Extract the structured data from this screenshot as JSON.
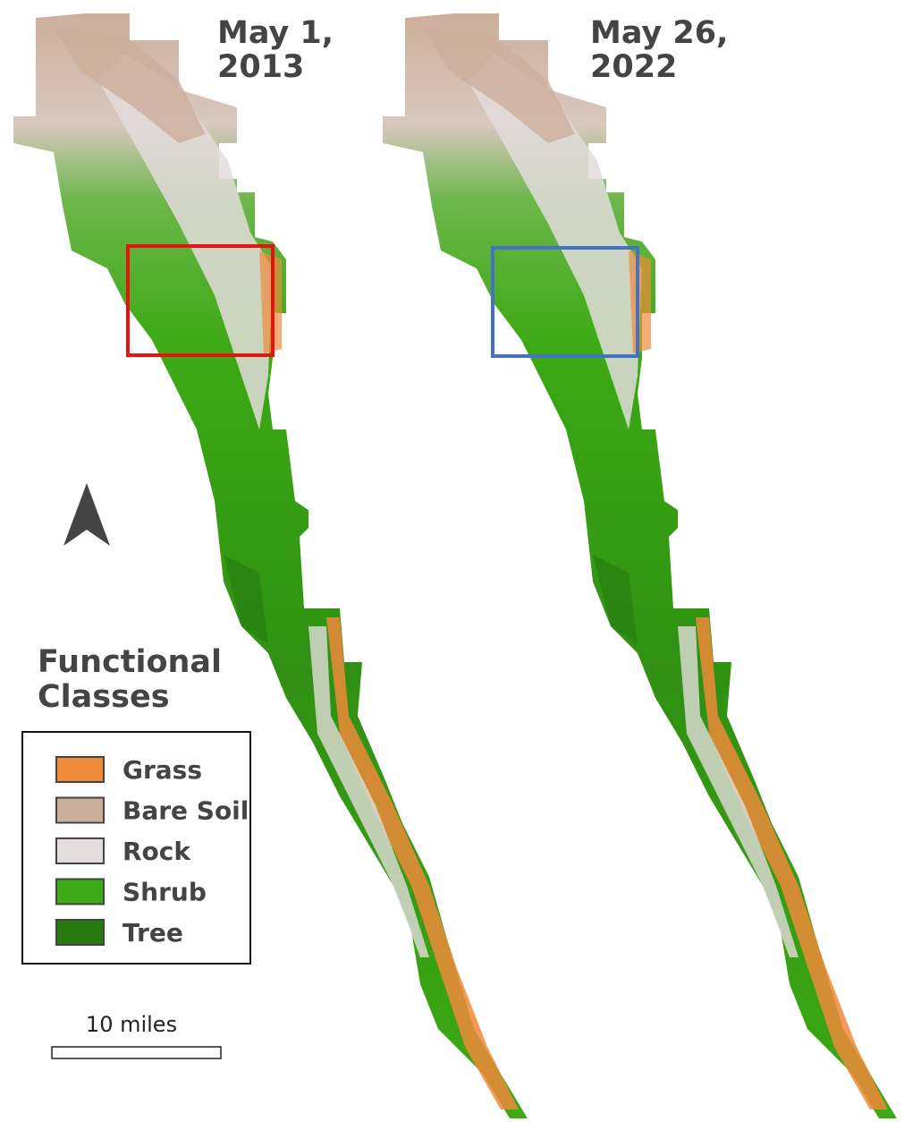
{
  "maps": [
    {
      "title": [
        "May 1,",
        "2013"
      ]
    },
    {
      "title": [
        "May 26,",
        "2022"
      ]
    }
  ],
  "legend": {
    "title": [
      "Functional",
      "Classes"
    ],
    "items": [
      {
        "label": "Grass",
        "color": "#ef8a3a"
      },
      {
        "label": "Bare Soil",
        "color": "#cdae9b"
      },
      {
        "label": "Rock",
        "color": "#e3dcdc"
      },
      {
        "label": "Shrub",
        "color": "#3caa14"
      },
      {
        "label": "Tree",
        "color": "#267a10"
      }
    ]
  },
  "scale_bar": {
    "label": "10 miles"
  }
}
